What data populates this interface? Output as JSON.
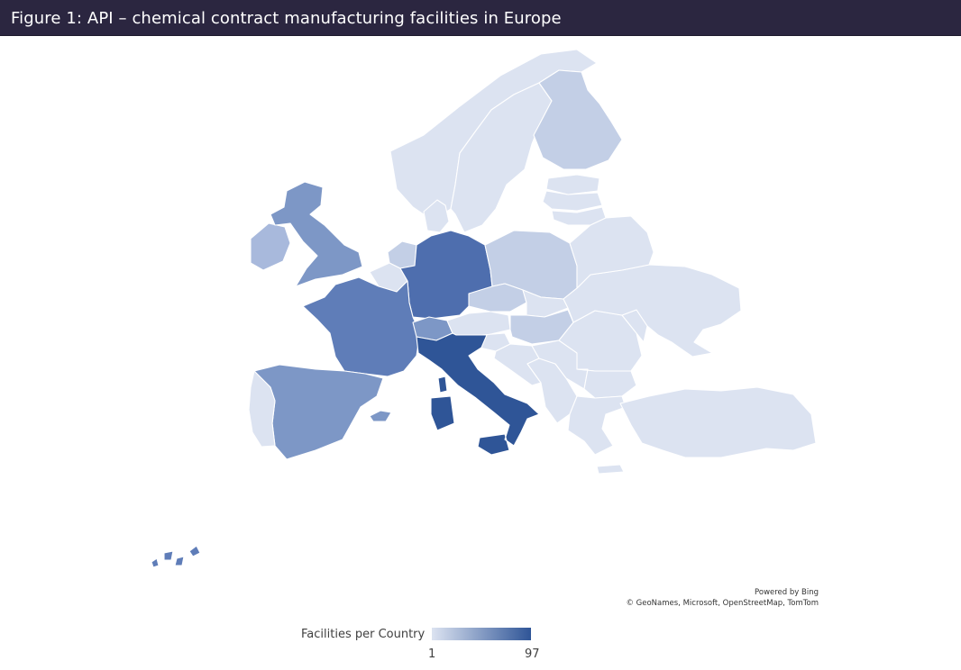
{
  "title": "Figure 1: API – chemical contract manufacturing facilities in Europe",
  "map": {
    "colors": {
      "very_low": "#dce3f1",
      "low": "#c3cfe6",
      "medium_low": "#a8b9dc",
      "medium": "#7d97c6",
      "high": "#5f7db8",
      "very_high": "#4e6eae",
      "max": "#2f5597",
      "background": "#ffffff"
    },
    "regions": [
      {
        "name": "Norway",
        "level": "very_low"
      },
      {
        "name": "Sweden",
        "level": "very_low"
      },
      {
        "name": "Finland",
        "level": "low"
      },
      {
        "name": "Estonia",
        "level": "very_low"
      },
      {
        "name": "Latvia",
        "level": "very_low"
      },
      {
        "name": "Lithuania",
        "level": "very_low"
      },
      {
        "name": "Denmark",
        "level": "very_low"
      },
      {
        "name": "Ireland",
        "level": "medium_low"
      },
      {
        "name": "United Kingdom",
        "level": "medium"
      },
      {
        "name": "Netherlands",
        "level": "low"
      },
      {
        "name": "Belgium",
        "level": "very_low"
      },
      {
        "name": "Germany",
        "level": "very_high"
      },
      {
        "name": "Poland",
        "level": "low"
      },
      {
        "name": "France",
        "level": "high"
      },
      {
        "name": "Switzerland",
        "level": "medium"
      },
      {
        "name": "Austria",
        "level": "very_low"
      },
      {
        "name": "Czechia",
        "level": "low"
      },
      {
        "name": "Slovakia",
        "level": "very_low"
      },
      {
        "name": "Hungary",
        "level": "low"
      },
      {
        "name": "Slovenia",
        "level": "very_low"
      },
      {
        "name": "Croatia",
        "level": "very_low"
      },
      {
        "name": "Serbia",
        "level": "very_low"
      },
      {
        "name": "Romania",
        "level": "very_low"
      },
      {
        "name": "Bulgaria",
        "level": "very_low"
      },
      {
        "name": "Greece",
        "level": "very_low"
      },
      {
        "name": "Turkey",
        "level": "very_low"
      },
      {
        "name": "Ukraine",
        "level": "very_low"
      },
      {
        "name": "Belarus",
        "level": "very_low"
      },
      {
        "name": "Moldova",
        "level": "very_low"
      },
      {
        "name": "Spain",
        "level": "medium"
      },
      {
        "name": "Portugal",
        "level": "very_low"
      },
      {
        "name": "Italy",
        "level": "max"
      },
      {
        "name": "Balkans",
        "level": "very_low"
      },
      {
        "name": "Canary Islands",
        "level": "high"
      }
    ]
  },
  "attribution": {
    "line1": "Powered by Bing",
    "line2": "© GeoNames, Microsoft, OpenStreetMap, TomTom"
  },
  "legend": {
    "label": "Facilities per Country",
    "min": "1",
    "max": "97",
    "gradient_start": "#dce3f1",
    "gradient_end": "#2f5597"
  }
}
